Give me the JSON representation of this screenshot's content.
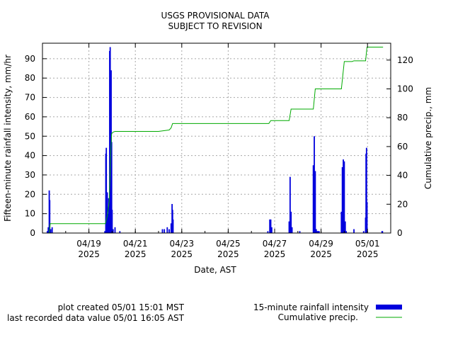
{
  "chart_data": {
    "type": "bar",
    "title_lines": [
      "USGS PROVISIONAL DATA",
      "SUBJECT TO REVISION"
    ],
    "xlabel": "Date, AST",
    "ylabel": "Fifteen-minute rainfall intensity, mm/hr",
    "y2label": "Cumulative precip., mm",
    "xlim": [
      "2025-04-17 00:00",
      "2025-05-02 00:00"
    ],
    "ylim": [
      0,
      98
    ],
    "y2lim": [
      0,
      131.7
    ],
    "x_ticks": [
      {
        "date": "2025-04-19",
        "label_line1": "04/19",
        "label_line2": "2025"
      },
      {
        "date": "2025-04-21",
        "label_line1": "04/21",
        "label_line2": "2025"
      },
      {
        "date": "2025-04-23",
        "label_line1": "04/23",
        "label_line2": "2025"
      },
      {
        "date": "2025-04-25",
        "label_line1": "04/25",
        "label_line2": "2025"
      },
      {
        "date": "2025-04-27",
        "label_line1": "04/27",
        "label_line2": "2025"
      },
      {
        "date": "2025-04-29",
        "label_line1": "04/29",
        "label_line2": "2025"
      },
      {
        "date": "2025-05-01",
        "label_line1": "05/01",
        "label_line2": "2025"
      }
    ],
    "y_ticks": [
      0,
      10,
      20,
      30,
      40,
      50,
      60,
      70,
      80,
      90
    ],
    "y2_ticks": [
      0,
      20,
      40,
      60,
      80,
      100,
      120
    ],
    "grid": true,
    "legend_position": "bottom-right",
    "series": [
      {
        "name": "15-minute rainfall intensity",
        "type": "bar",
        "color": "#0000dd",
        "points": [
          [
            "2025-04-17 05:00",
            1
          ],
          [
            "2025-04-17 06:00",
            3
          ],
          [
            "2025-04-17 07:00",
            22
          ],
          [
            "2025-04-17 07:30",
            17
          ],
          [
            "2025-04-17 08:30",
            2
          ],
          [
            "2025-04-17 10:00",
            3
          ],
          [
            "2025-04-19 16:30",
            1
          ],
          [
            "2025-04-19 17:30",
            41
          ],
          [
            "2025-04-19 18:00",
            44
          ],
          [
            "2025-04-19 19:00",
            21
          ],
          [
            "2025-04-19 19:30",
            10
          ],
          [
            "2025-04-19 20:00",
            6
          ],
          [
            "2025-04-19 20:30",
            18
          ],
          [
            "2025-04-19 21:00",
            16
          ],
          [
            "2025-04-19 21:30",
            94
          ],
          [
            "2025-04-19 22:00",
            96
          ],
          [
            "2025-04-19 22:30",
            80
          ],
          [
            "2025-04-19 23:00",
            84
          ],
          [
            "2025-04-19 23:30",
            47
          ],
          [
            "2025-04-20 00:00",
            12
          ],
          [
            "2025-04-20 01:00",
            2
          ],
          [
            "2025-04-20 03:00",
            3
          ],
          [
            "2025-04-20 08:00",
            1
          ],
          [
            "2025-04-22 04:00",
            2
          ],
          [
            "2025-04-22 06:00",
            2
          ],
          [
            "2025-04-22 09:00",
            3
          ],
          [
            "2025-04-22 11:00",
            2
          ],
          [
            "2025-04-22 13:00",
            5
          ],
          [
            "2025-04-22 14:00",
            15
          ],
          [
            "2025-04-22 14:30",
            12
          ],
          [
            "2025-04-22 15:00",
            7
          ],
          [
            "2025-04-26 17:00",
            1
          ],
          [
            "2025-04-26 19:00",
            7
          ],
          [
            "2025-04-26 20:00",
            7
          ],
          [
            "2025-04-26 21:00",
            3
          ],
          [
            "2025-04-27 15:00",
            6
          ],
          [
            "2025-04-27 16:00",
            29
          ],
          [
            "2025-04-27 17:00",
            11
          ],
          [
            "2025-04-27 18:00",
            3
          ],
          [
            "2025-04-28 02:00",
            1
          ],
          [
            "2025-04-28 16:00",
            35
          ],
          [
            "2025-04-28 17:00",
            50
          ],
          [
            "2025-04-28 18:00",
            32
          ],
          [
            "2025-04-28 19:00",
            2
          ],
          [
            "2025-04-28 20:00",
            1
          ],
          [
            "2025-04-28 21:00",
            1
          ],
          [
            "2025-04-28 22:00",
            1
          ],
          [
            "2025-04-29 21:00",
            11
          ],
          [
            "2025-04-29 22:00",
            34
          ],
          [
            "2025-04-29 23:00",
            38
          ],
          [
            "2025-04-30 00:00",
            37
          ],
          [
            "2025-04-30 01:00",
            6
          ],
          [
            "2025-04-30 02:00",
            1
          ],
          [
            "2025-04-30 10:00",
            2
          ],
          [
            "2025-04-30 20:00",
            1
          ],
          [
            "2025-04-30 22:00",
            8
          ],
          [
            "2025-04-30 22:30",
            41
          ],
          [
            "2025-04-30 23:00",
            44
          ],
          [
            "2025-04-30 23:30",
            16
          ],
          [
            "2025-05-01 15:00",
            1
          ],
          [
            "2025-05-01 15:30",
            1
          ]
        ]
      },
      {
        "name": "Cumulative precip.",
        "type": "line",
        "axis": "y2",
        "color": "#00aa00",
        "points": [
          [
            "2025-04-17 05:00",
            0
          ],
          [
            "2025-04-17 07:00",
            0
          ],
          [
            "2025-04-17 08:00",
            6.5
          ],
          [
            "2025-04-19 17:00",
            6.5
          ],
          [
            "2025-04-19 19:00",
            12
          ],
          [
            "2025-04-19 21:00",
            22
          ],
          [
            "2025-04-19 22:30",
            55
          ],
          [
            "2025-04-19 23:30",
            69
          ],
          [
            "2025-04-20 01:00",
            70
          ],
          [
            "2025-04-20 03:00",
            70.5
          ],
          [
            "2025-04-22 00:00",
            70.5
          ],
          [
            "2025-04-22 11:00",
            71.5
          ],
          [
            "2025-04-22 13:00",
            73
          ],
          [
            "2025-04-22 14:30",
            76
          ],
          [
            "2025-04-26 18:00",
            76
          ],
          [
            "2025-04-26 20:00",
            78
          ],
          [
            "2025-04-27 15:00",
            78
          ],
          [
            "2025-04-27 17:00",
            86
          ],
          [
            "2025-04-28 16:00",
            86
          ],
          [
            "2025-04-28 18:00",
            100
          ],
          [
            "2025-04-29 21:00",
            100
          ],
          [
            "2025-04-30 00:00",
            119
          ],
          [
            "2025-04-30 08:00",
            119
          ],
          [
            "2025-04-30 10:00",
            119.5
          ],
          [
            "2025-04-30 22:00",
            119.5
          ],
          [
            "2025-04-30 23:30",
            129
          ],
          [
            "2025-05-01 16:05",
            129
          ]
        ]
      }
    ],
    "footer": {
      "created": "plot created 05/01 15:01 MST",
      "last_value": "last recorded data value 05/01 16:05 AST"
    }
  }
}
